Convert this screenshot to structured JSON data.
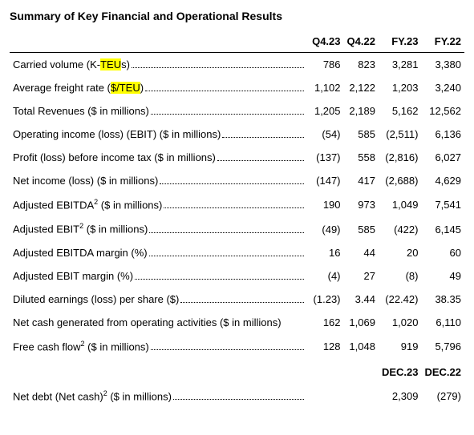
{
  "title": "Summary of Key Financial and Operational Results",
  "columns": [
    "Q4.23",
    "Q4.22",
    "FY.23",
    "FY.22"
  ],
  "rows": [
    {
      "label_pre": "Carried volume (K-",
      "hl": "TEU",
      "label_post": "s)",
      "dots": true,
      "v": [
        "786",
        "823",
        "3,281",
        "3,380"
      ]
    },
    {
      "label_pre": "Average freight rate (",
      "hl": "$/TEU",
      "label_post": ")",
      "dots": true,
      "v": [
        "1,102",
        "2,122",
        "1,203",
        "3,240"
      ]
    },
    {
      "label_pre": "Total Revenues ($ in millions)",
      "dots": true,
      "v": [
        "1,205",
        "2,189",
        "5,162",
        "12,562"
      ]
    },
    {
      "label_pre": "Operating income (loss) (EBIT) ($ in millions)",
      "dots": true,
      "v": [
        "(54)",
        "585",
        "(2,511)",
        "6,136"
      ]
    },
    {
      "label_pre": "Profit (loss) before income tax ($ in millions)",
      "dots": true,
      "v": [
        "(137)",
        "558",
        "(2,816)",
        "6,027"
      ]
    },
    {
      "label_pre": "Net income (loss) ($ in millions)",
      "dots": true,
      "v": [
        "(147)",
        "417",
        "(2,688)",
        "4,629"
      ]
    },
    {
      "label_pre": "Adjusted EBITDA",
      "sup": "2",
      "label_post": " ($ in millions)",
      "dots": true,
      "v": [
        "190",
        "973",
        "1,049",
        "7,541"
      ]
    },
    {
      "label_pre": "Adjusted EBIT",
      "sup": "2",
      "label_post": " ($ in millions)",
      "dots": true,
      "v": [
        "(49)",
        "585",
        "(422)",
        "6,145"
      ]
    },
    {
      "label_pre": "Adjusted EBITDA margin (%)",
      "dots": true,
      "v": [
        "16",
        "44",
        "20",
        "60"
      ]
    },
    {
      "label_pre": "Adjusted EBIT margin (%)",
      "dots": true,
      "v": [
        "(4)",
        "27",
        "(8)",
        "49"
      ]
    },
    {
      "label_pre": "Diluted earnings (loss) per share ($)",
      "dots": true,
      "v": [
        "(1.23)",
        "3.44",
        "(22.42)",
        "38.35"
      ]
    },
    {
      "label_pre": "Net cash generated from operating activities ($ in millions)",
      "dots": false,
      "v": [
        "162",
        "1,069",
        "1,020",
        "6,110"
      ]
    },
    {
      "label_pre": "Free cash flow",
      "sup": "2",
      "label_post": " ($ in millions)",
      "dots": true,
      "v": [
        "128",
        "1,048",
        "919",
        "5,796"
      ]
    }
  ],
  "subhead": [
    "DEC.23",
    "DEC.22"
  ],
  "rows2": [
    {
      "label_pre": "Net debt (Net cash)",
      "sup": "2",
      "label_post": " ($ in millions)",
      "dots": true,
      "v": [
        "",
        "",
        "2,309",
        "(279)"
      ]
    }
  ],
  "col_widths": [
    "auto",
    "50px",
    "50px",
    "58px",
    "58px"
  ]
}
